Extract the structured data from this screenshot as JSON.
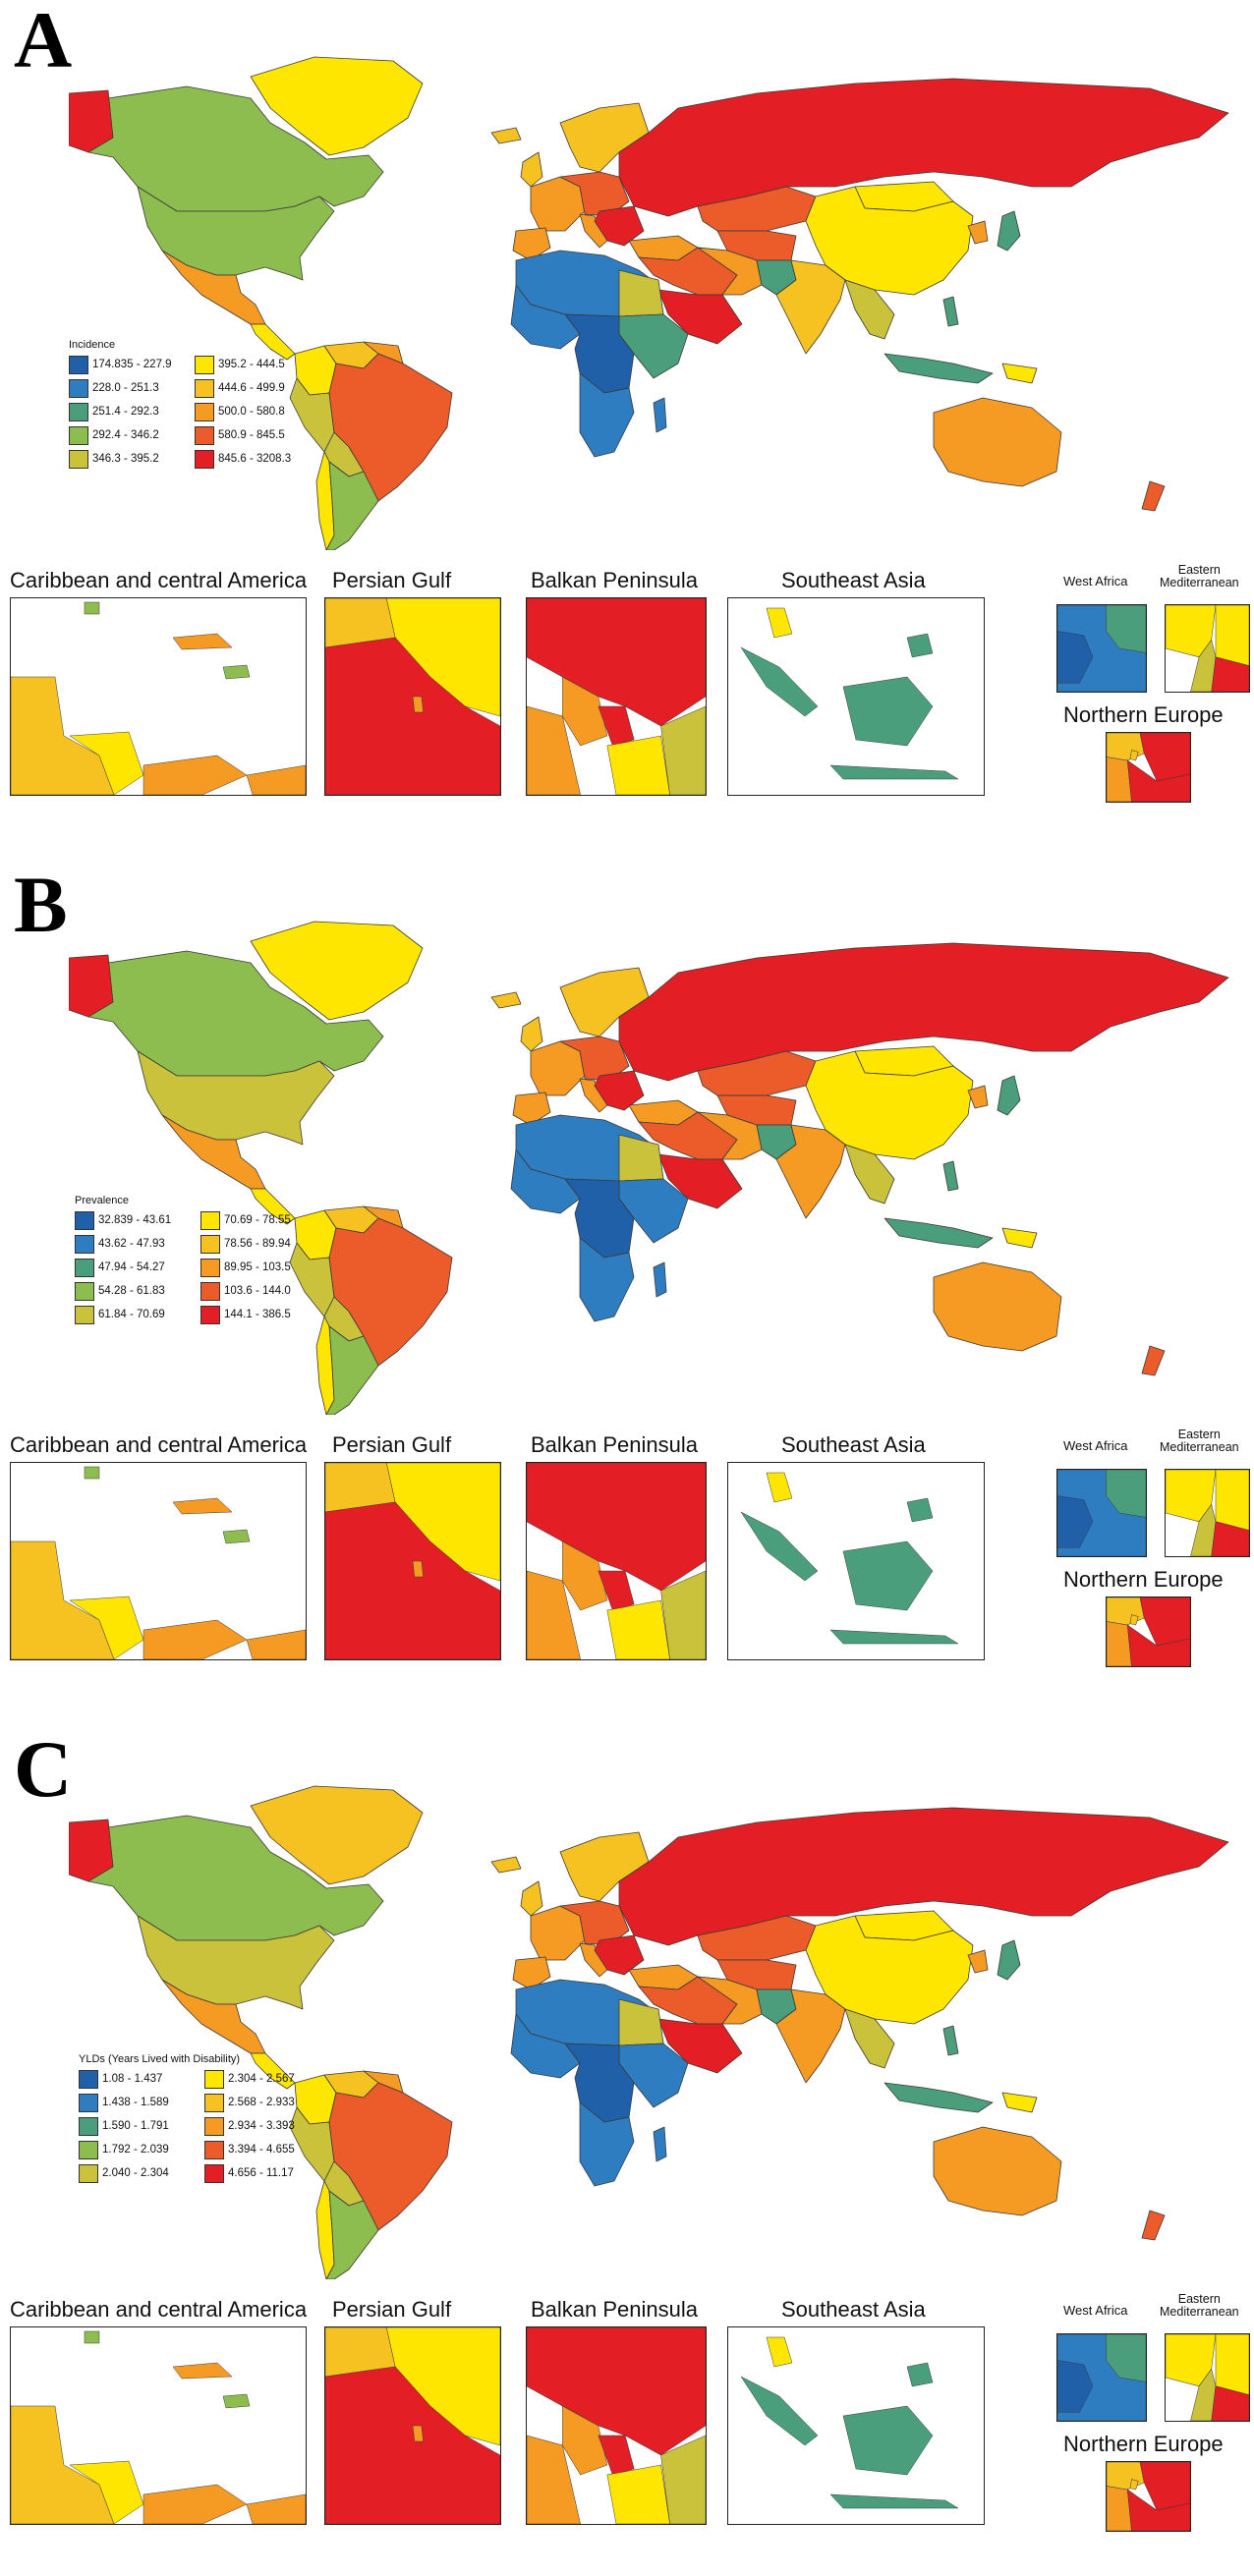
{
  "palette": [
    "#2060a8",
    "#2e7dc0",
    "#4b9e7c",
    "#8cbd4e",
    "#c9c23a",
    "#ffe600",
    "#f5c221",
    "#f59a23",
    "#ec5b2a",
    "#e31e24"
  ],
  "insets": {
    "caribbean": "Caribbean and central America",
    "persian_gulf": "Persian Gulf",
    "balkan": "Balkan Peninsula",
    "southeast_asia": "Southeast Asia",
    "west_africa": "West Africa",
    "eastern_med_1": "Eastern",
    "eastern_med_2": "Mediterranean",
    "northern_europe": "Northern Europe"
  },
  "panels": [
    {
      "letter": "A",
      "legend_title": "Incidence",
      "legend": [
        "174.835 - 227.9",
        "395.2 - 444.5",
        "228.0 - 251.3",
        "444.6 - 499.9",
        "251.4 - 292.3",
        "500.0 - 580.8",
        "292.4 - 346.2",
        "580.9 - 845.5",
        "346.3 - 395.2",
        "845.6 - 3208.3"
      ]
    },
    {
      "letter": "B",
      "legend_title": "Prevalence",
      "legend": [
        "32.839 - 43.61",
        "70.69 - 78.55",
        "43.62 - 47.93",
        "78.56 - 89.94",
        "47.94 - 54.27",
        "89.95 - 103.5",
        "54.28 - 61.83",
        "103.6 - 144.0",
        "61.84 - 70.69",
        "144.1 - 386.5"
      ]
    },
    {
      "letter": "C",
      "legend_title": "YLDs (Years Lived with Disability)",
      "legend": [
        "1.08 - 1.437",
        "2.304 - 2.567",
        "1.438 - 1.589",
        "2.568 - 2.933",
        "1.590 - 1.791",
        "2.934 - 3.393",
        "1.792 - 2.039",
        "3.394 - 4.655",
        "2.040 - 2.304",
        "4.656 - 11.17"
      ]
    }
  ]
}
